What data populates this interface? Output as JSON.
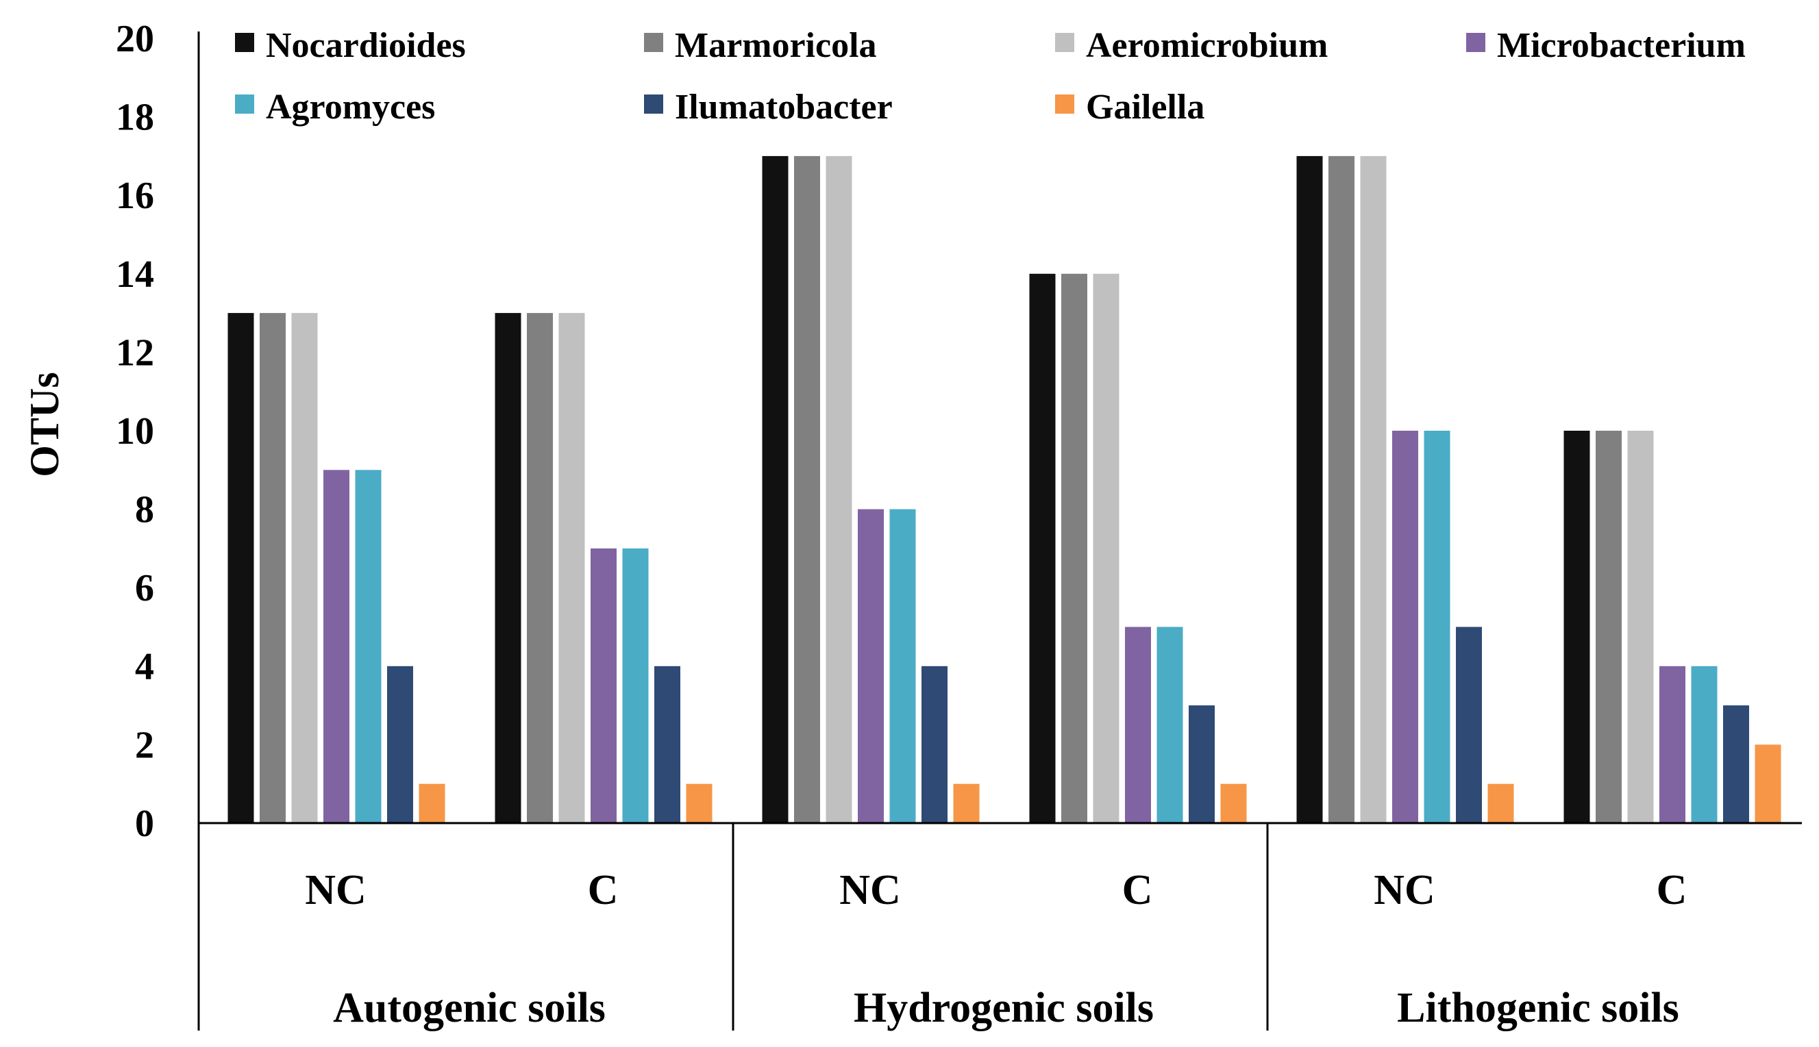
{
  "chart_data": {
    "type": "bar",
    "title": "",
    "xlabel": "",
    "ylabel": "OTUs",
    "ylim": [
      0,
      20
    ],
    "yticks": [
      0,
      2,
      4,
      6,
      8,
      10,
      12,
      14,
      16,
      18,
      20
    ],
    "grid": false,
    "legend_position": "top",
    "groups": [
      {
        "name": "Autogenic soils",
        "conditions": [
          "NC",
          "C"
        ]
      },
      {
        "name": "Hydrogenic soils",
        "conditions": [
          "NC",
          "C"
        ]
      },
      {
        "name": "Lithogenic soils",
        "conditions": [
          "NC",
          "C"
        ]
      }
    ],
    "categories": [
      "Autogenic soils NC",
      "Autogenic soils C",
      "Hydrogenic soils NC",
      "Hydrogenic soils C",
      "Lithogenic soils NC",
      "Lithogenic soils C"
    ],
    "series": [
      {
        "name": "Nocardioides",
        "color": "#111111",
        "values": [
          13,
          13,
          17,
          14,
          17,
          10
        ]
      },
      {
        "name": "Marmoricola",
        "color": "#808080",
        "values": [
          13,
          13,
          17,
          14,
          17,
          10
        ]
      },
      {
        "name": "Aeromicrobium",
        "color": "#c0c0c0",
        "values": [
          13,
          13,
          17,
          14,
          17,
          10
        ]
      },
      {
        "name": "Microbacterium",
        "color": "#8064a2",
        "values": [
          9,
          7,
          8,
          5,
          10,
          4
        ]
      },
      {
        "name": "Agromyces",
        "color": "#4bacc6",
        "values": [
          9,
          7,
          8,
          5,
          10,
          4
        ]
      },
      {
        "name": "Ilumatobacter",
        "color": "#2e4a75",
        "values": [
          4,
          4,
          4,
          3,
          5,
          3
        ]
      },
      {
        "name": "Gailella",
        "color": "#f79646",
        "values": [
          1,
          1,
          1,
          1,
          1,
          2
        ]
      }
    ]
  }
}
